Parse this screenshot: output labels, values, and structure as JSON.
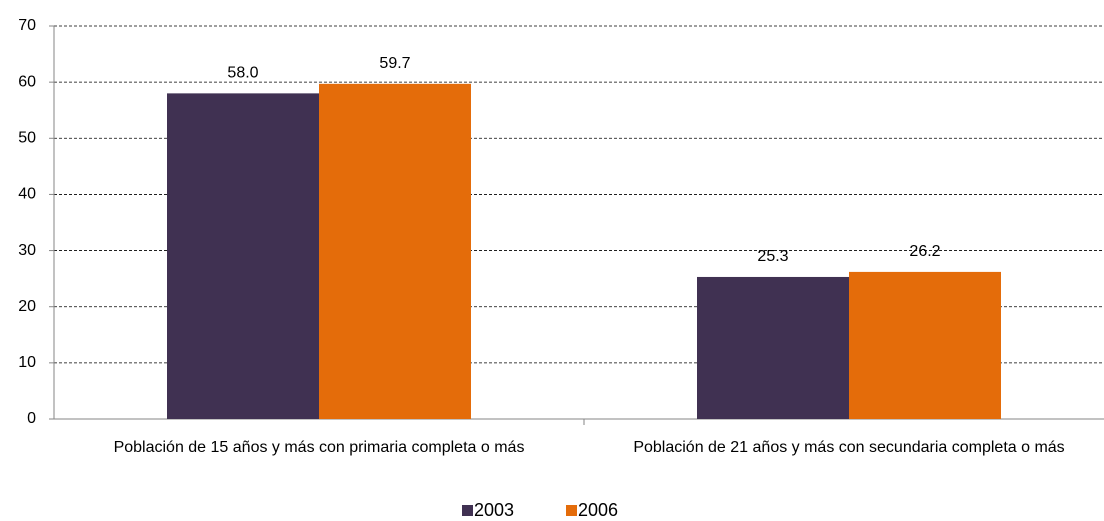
{
  "chart_data": {
    "type": "bar",
    "categories": [
      "Población de 15 años y más con primaria completa o más",
      "Población de 21 años y más con secundaria completa o más"
    ],
    "series": [
      {
        "name": "2003",
        "color": "#403152",
        "values": [
          58.0,
          25.3
        ],
        "value_labels": [
          "58.0",
          "25.3"
        ]
      },
      {
        "name": "2006",
        "color": "#e46c0a",
        "values": [
          59.7,
          26.2
        ]
      }
    ],
    "ylim": [
      0,
      70
    ],
    "yticks": [
      0,
      10,
      20,
      30,
      40,
      50,
      60,
      70
    ],
    "grid": true,
    "legend": "bottom"
  }
}
